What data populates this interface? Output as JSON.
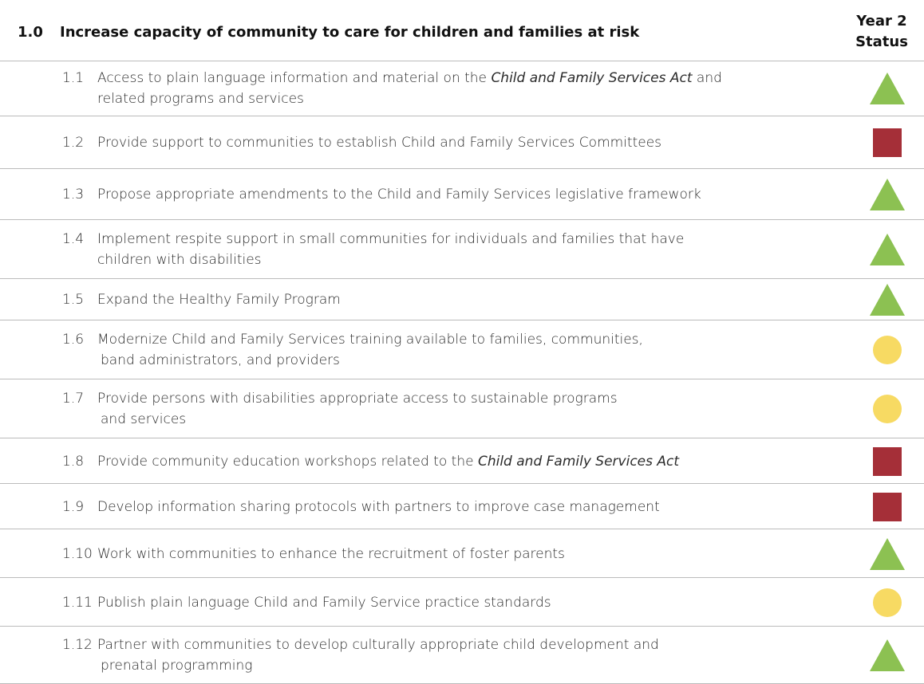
{
  "header": {
    "number": "1.0",
    "title": "Increase capacity of community to care for children and families at risk",
    "status_heading": [
      "Year 2",
      "Status"
    ]
  },
  "table": {
    "rows": [
      {
        "number": "1.1",
        "lines": [
          [
            "Access to plain language information and material on the ",
            {
              "text": "Child and Family Services Act",
              "italic": true
            },
            " and"
          ],
          [
            "related programs and services"
          ]
        ]
      },
      {
        "number": "1.2",
        "lines": [
          [
            "Provide support to communities to establish Child and Family Services Committees"
          ]
        ]
      },
      {
        "number": "1.3",
        "lines": [
          [
            "Propose appropriate amendments to the Child and Family Services legislative framework"
          ]
        ]
      },
      {
        "number": "1.4",
        "lines": [
          [
            "Implement respite support in small communities for individuals and families that have"
          ],
          [
            "children with disabilities"
          ]
        ]
      },
      {
        "number": "1.5",
        "lines": [
          [
            "Expand the Healthy Family Program"
          ]
        ]
      },
      {
        "number": "1.6",
        "lines": [
          [
            "Modernize Child and Family Services training available to families, communities,"
          ],
          [
            "band administrators, and providers"
          ]
        ]
      },
      {
        "number": "1.7",
        "lines": [
          [
            "Provide persons with disabilities appropriate access to sustainable programs"
          ],
          [
            "and services"
          ]
        ]
      },
      {
        "number": "1.8",
        "lines": [
          [
            "Provide community education workshops related to the ",
            {
              "text": "Child and Family Services Act",
              "italic": true
            }
          ]
        ]
      },
      {
        "number": "1.9",
        "lines": [
          [
            "Develop information sharing protocols with partners to improve case management"
          ]
        ]
      },
      {
        "number": "1.10",
        "lines": [
          [
            "Work with communities to enhance the recruitment of foster parents"
          ]
        ]
      },
      {
        "number": "1.11",
        "lines": [
          [
            "Publish plain language Child and Family Service practice standards"
          ]
        ]
      },
      {
        "number": "1.12",
        "lines": [
          [
            "Partner with communities to develop culturally appropriate child development and"
          ],
          [
            "prenatal programming"
          ]
        ]
      }
    ]
  }
}
